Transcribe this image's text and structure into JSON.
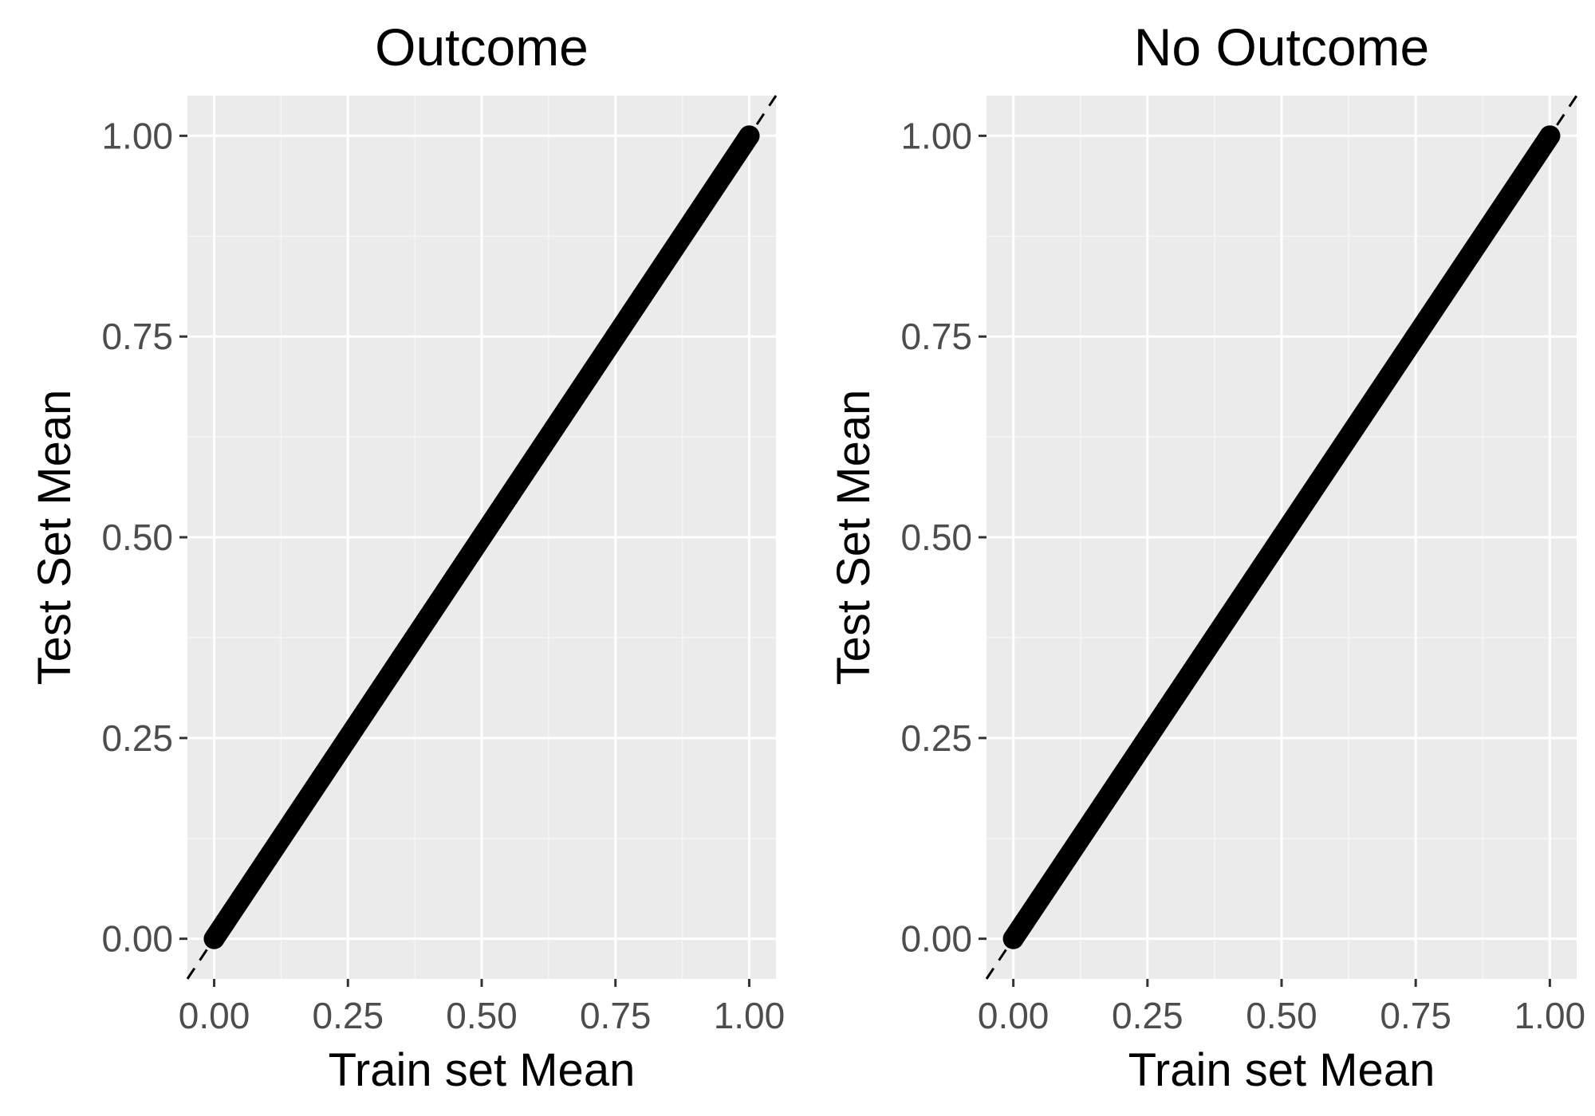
{
  "chart_data": [
    {
      "type": "scatter",
      "title": "Outcome",
      "xlabel": "Train set Mean",
      "ylabel": "Test Set Mean",
      "xlim": [
        -0.05,
        1.05
      ],
      "ylim": [
        -0.05,
        1.05
      ],
      "x_ticks": [
        "0.00",
        "0.25",
        "0.50",
        "0.75",
        "1.00"
      ],
      "y_ticks": [
        "0.00",
        "0.25",
        "0.50",
        "0.75",
        "1.00"
      ],
      "tick_values": [
        0,
        0.25,
        0.5,
        0.75,
        1.0
      ],
      "grid": true,
      "reference_line": {
        "style": "dashed",
        "slope": 1,
        "intercept": 0,
        "color": "#000000"
      },
      "series": [
        {
          "color": "#000000",
          "points": [
            [
              0.0,
              0.0
            ],
            [
              0.02,
              0.02
            ],
            [
              0.05,
              0.05
            ],
            [
              0.1,
              0.1
            ],
            [
              0.15,
              0.15
            ],
            [
              0.2,
              0.2
            ],
            [
              0.25,
              0.25
            ],
            [
              0.3,
              0.3
            ],
            [
              0.35,
              0.35
            ],
            [
              0.4,
              0.4
            ],
            [
              0.45,
              0.45
            ],
            [
              0.5,
              0.5
            ],
            [
              0.55,
              0.55
            ],
            [
              0.6,
              0.6
            ],
            [
              0.65,
              0.65
            ],
            [
              0.7,
              0.7
            ],
            [
              0.75,
              0.75
            ],
            [
              0.8,
              0.8
            ],
            [
              0.85,
              0.85
            ],
            [
              0.9,
              0.9
            ],
            [
              0.95,
              0.95
            ],
            [
              1.0,
              1.0
            ]
          ]
        }
      ]
    },
    {
      "type": "scatter",
      "title": "No Outcome",
      "xlabel": "Train set Mean",
      "ylabel": "Test Set Mean",
      "xlim": [
        -0.05,
        1.05
      ],
      "ylim": [
        -0.05,
        1.05
      ],
      "x_ticks": [
        "0.00",
        "0.25",
        "0.50",
        "0.75",
        "1.00"
      ],
      "y_ticks": [
        "0.00",
        "0.25",
        "0.50",
        "0.75",
        "1.00"
      ],
      "tick_values": [
        0,
        0.25,
        0.5,
        0.75,
        1.0
      ],
      "grid": true,
      "reference_line": {
        "style": "dashed",
        "slope": 1,
        "intercept": 0,
        "color": "#000000"
      },
      "series": [
        {
          "color": "#000000",
          "points": [
            [
              0.0,
              0.0
            ],
            [
              0.02,
              0.02
            ],
            [
              0.05,
              0.05
            ],
            [
              0.1,
              0.1
            ],
            [
              0.15,
              0.15
            ],
            [
              0.2,
              0.2
            ],
            [
              0.25,
              0.25
            ],
            [
              0.3,
              0.3
            ],
            [
              0.35,
              0.35
            ],
            [
              0.4,
              0.4
            ],
            [
              0.45,
              0.45
            ],
            [
              0.5,
              0.5
            ],
            [
              0.55,
              0.55
            ],
            [
              0.6,
              0.6
            ],
            [
              0.65,
              0.65
            ],
            [
              0.7,
              0.7
            ],
            [
              0.75,
              0.75
            ],
            [
              0.8,
              0.8
            ],
            [
              0.85,
              0.85
            ],
            [
              0.9,
              0.9
            ],
            [
              0.95,
              0.95
            ],
            [
              1.0,
              1.0
            ]
          ]
        }
      ]
    }
  ],
  "colors": {
    "panel_background": "#ebebeb",
    "grid_major": "#ffffff",
    "grid_minor": "#f5f5f5",
    "tick_text": "#4d4d4d",
    "points": "#000000"
  }
}
